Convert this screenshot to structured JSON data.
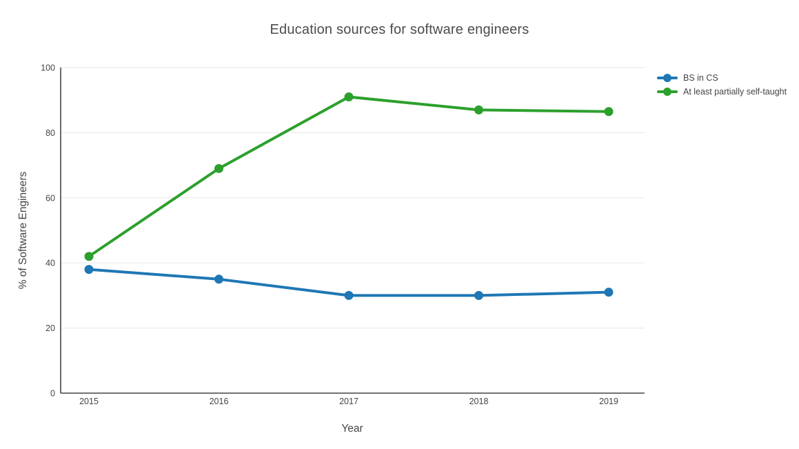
{
  "chart_data": {
    "type": "line",
    "title": "Education sources for software engineers",
    "xlabel": "Year",
    "ylabel": "% of Software Engineers",
    "categories": [
      "2015",
      "2016",
      "2017",
      "2018",
      "2019"
    ],
    "series": [
      {
        "name": "BS in CS",
        "color": "#1f77b4",
        "values": [
          38,
          35,
          30,
          30,
          31
        ]
      },
      {
        "name": "At least partially self-taught",
        "color": "#2ca02c",
        "values": [
          42,
          69,
          91,
          87,
          86.5
        ]
      }
    ],
    "ylim": [
      0,
      100
    ],
    "yticks": [
      0,
      20,
      40,
      60,
      80,
      100
    ],
    "grid": "horizontal-only",
    "legend_position": "outside-top-right",
    "colors": {
      "axis": "#444444",
      "text": "#444444",
      "grid": "#ececec",
      "background": "#ffffff"
    }
  }
}
